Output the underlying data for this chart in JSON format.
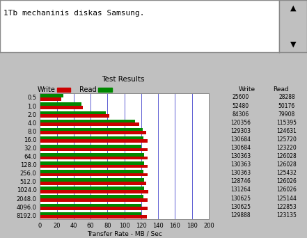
{
  "title_text": "1Tb mechaninis diskas Samsung.",
  "chart_title": "Test Results",
  "xlabel": "Transfer Rate - MB / Sec",
  "categories": [
    "0.5",
    "1.0",
    "2.0",
    "4.0",
    "8.0",
    "16.0",
    "32.0",
    "64.0",
    "128.0",
    "256.0",
    "512.0",
    "1024.0",
    "2048.0",
    "4096.0",
    "8192.0"
  ],
  "write_values_kb": [
    25600,
    52480,
    84306,
    120356,
    129303,
    130684,
    130684,
    130363,
    130363,
    130363,
    128746,
    131264,
    130625,
    130625,
    129888
  ],
  "read_values_kb": [
    28288,
    50176,
    79908,
    115395,
    124631,
    125720,
    123220,
    126028,
    126028,
    125432,
    126026,
    126026,
    125144,
    122853,
    123135
  ],
  "write_mb": [
    25.0,
    51.25,
    82.33,
    117.54,
    126.27,
    127.62,
    127.62,
    127.31,
    127.31,
    127.31,
    125.73,
    128.19,
    127.56,
    127.56,
    126.84
  ],
  "read_mb": [
    27.63,
    49.0,
    78.04,
    112.69,
    121.71,
    122.77,
    120.33,
    123.07,
    123.07,
    122.49,
    123.07,
    123.07,
    122.21,
    119.97,
    120.25
  ],
  "write_color": "#cc0000",
  "read_color": "#008800",
  "bg_color": "#c0c0c0",
  "plot_bg": "#ffffff",
  "grid_color": "#4444cc",
  "xlim": [
    0,
    200
  ],
  "xticks": [
    0,
    20,
    40,
    60,
    80,
    100,
    120,
    140,
    160,
    180,
    200
  ],
  "bar_height": 0.38,
  "write_label": "Write",
  "read_label": "Read",
  "col_write_header": "Write",
  "col_read_header": "Read"
}
